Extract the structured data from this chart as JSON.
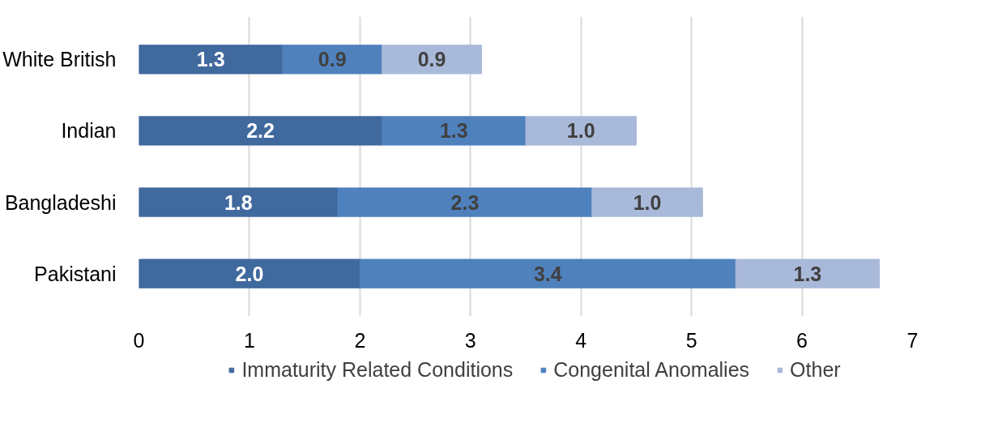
{
  "chart_data": {
    "type": "bar",
    "orientation": "horizontal",
    "stacked": true,
    "categories": [
      "White British",
      "Indian",
      "Bangladeshi",
      "Pakistani"
    ],
    "series": [
      {
        "name": "Immaturity Related Conditions",
        "color": "#40699e",
        "values": [
          1.3,
          2.2,
          1.8,
          2.0
        ],
        "value_labels": [
          "1.3",
          "2.2",
          "1.8",
          "2.0"
        ]
      },
      {
        "name": "Congenital Anomalies",
        "color": "#4f81bd",
        "values": [
          0.9,
          1.3,
          2.3,
          3.4
        ],
        "value_labels": [
          "0.9",
          "1.3",
          "2.3",
          "3.4"
        ]
      },
      {
        "name": "Other",
        "color": "#a9b9d9",
        "values": [
          0.9,
          1.0,
          1.0,
          1.3
        ],
        "value_labels": [
          "0.9",
          "1.0",
          "1.0",
          "1.3"
        ]
      }
    ],
    "xlim": [
      0,
      7
    ],
    "xticks": [
      0,
      1,
      2,
      3,
      4,
      5,
      6,
      7
    ],
    "grid": "x",
    "legend": "bottom"
  }
}
